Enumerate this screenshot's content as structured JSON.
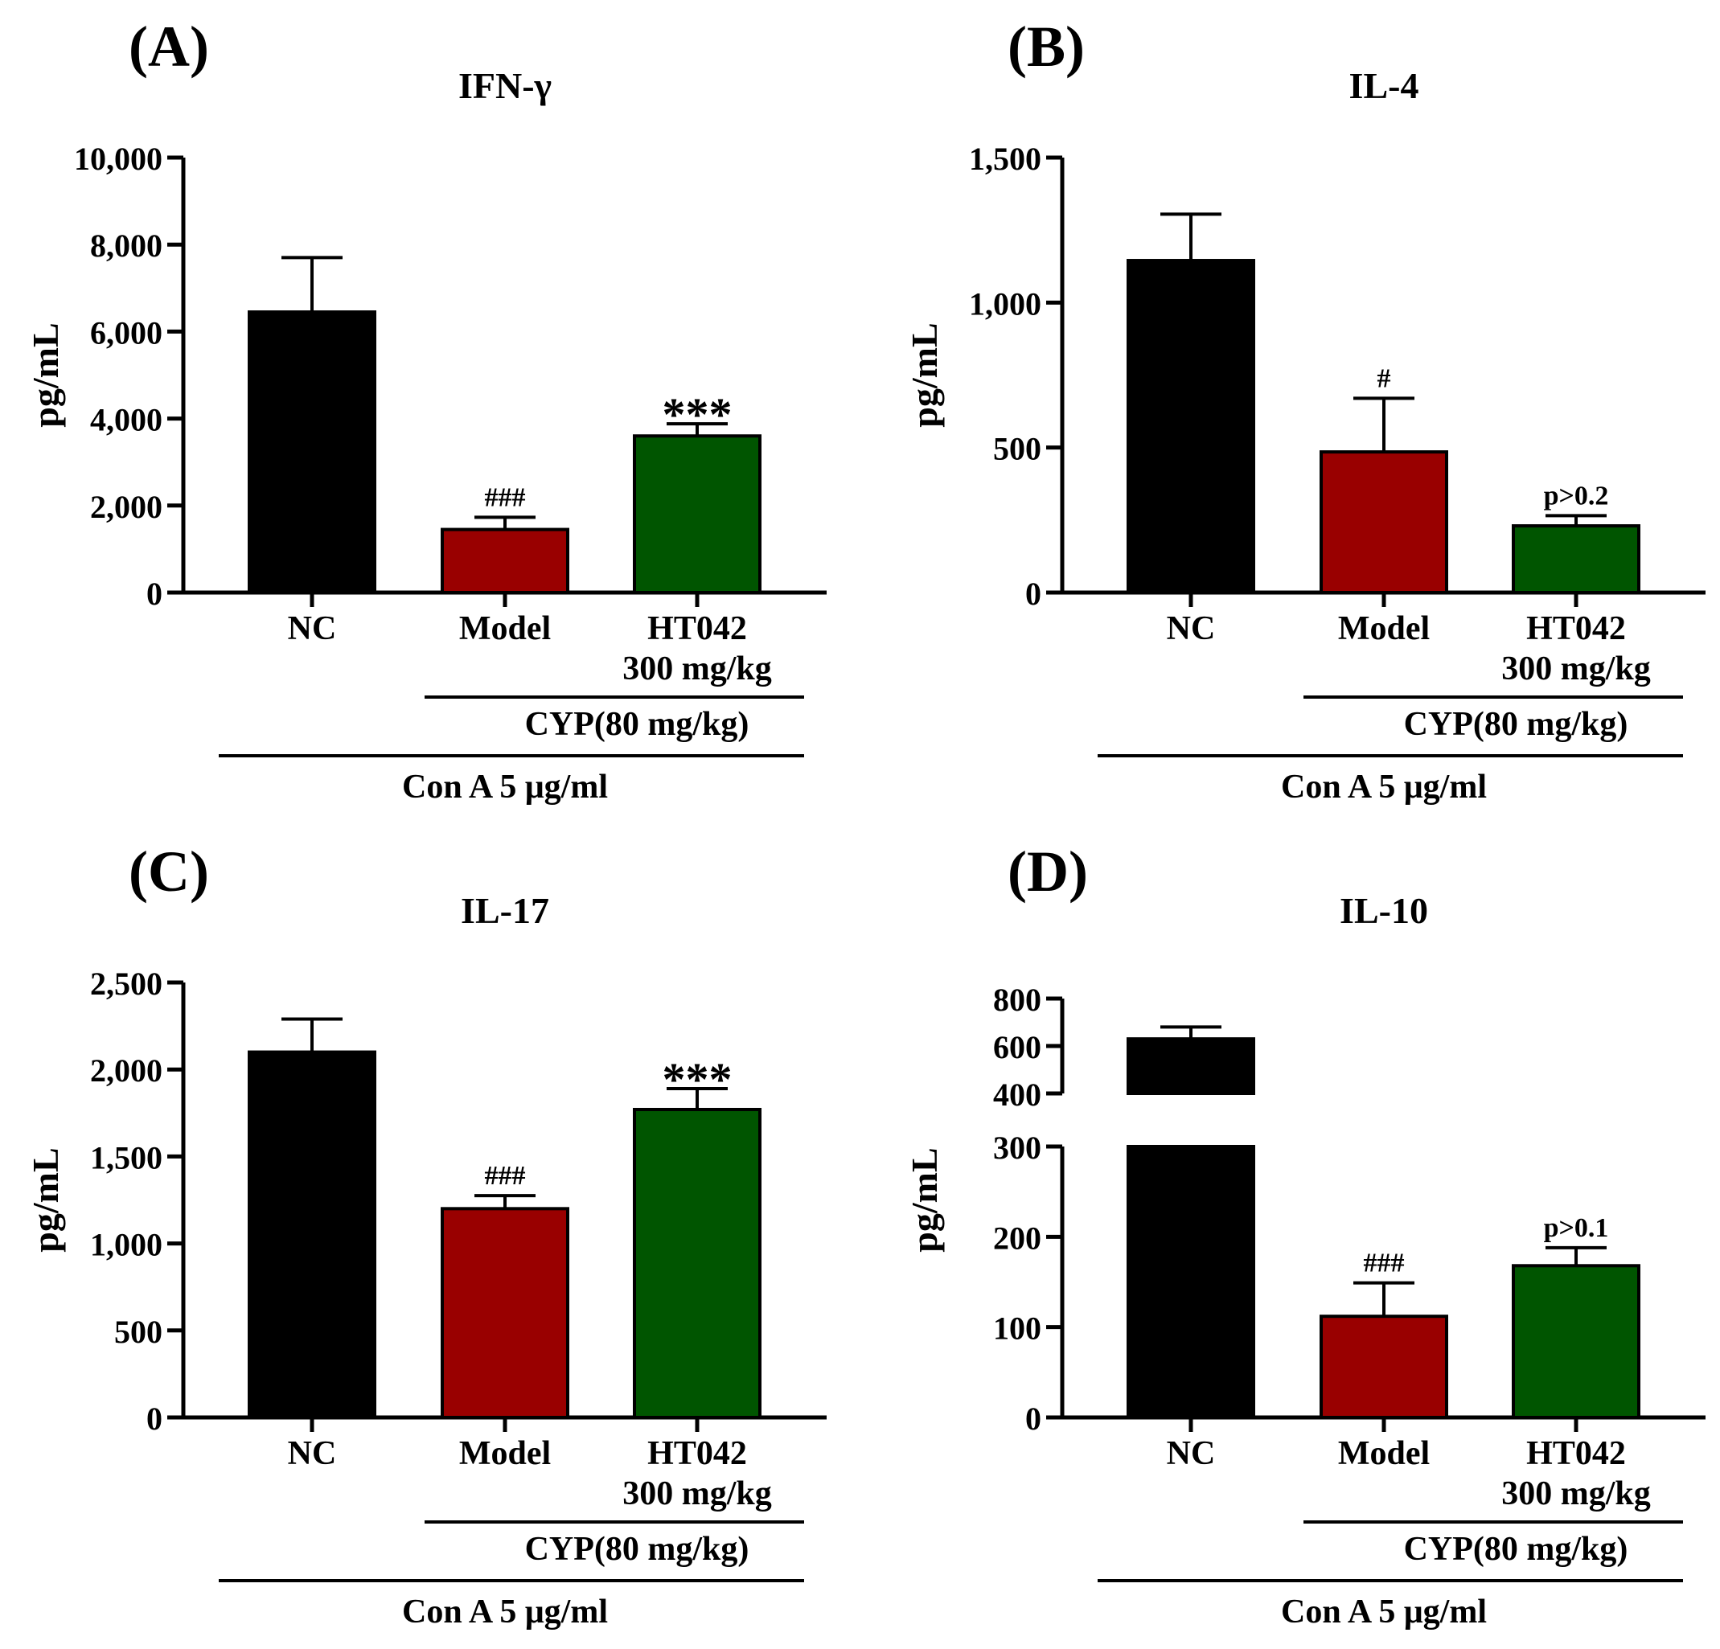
{
  "colors": {
    "nc": "#000000",
    "model": "#990000",
    "ht042": "#005500",
    "axis": "#000000"
  },
  "chart_data": [
    {
      "type": "bar",
      "panel_label": "(A)",
      "title": "IFN-γ",
      "ylabel": "pg/mL",
      "ylim": [
        0,
        10000
      ],
      "yticks": [
        "0",
        "2,000",
        "4,000",
        "6,000",
        "8,000",
        "10,000"
      ],
      "categories": [
        {
          "line1": "NC",
          "line2": ""
        },
        {
          "line1": "Model",
          "line2": ""
        },
        {
          "line1": "HT042",
          "line2": "300 mg/kg"
        }
      ],
      "values": [
        6450,
        1450,
        3600
      ],
      "errors": [
        1250,
        280,
        280
      ],
      "annotations": [
        "",
        "###",
        "***"
      ],
      "group_label_cyp": "CYP(80 mg/kg)",
      "group_label_cona": "Con A 5 μg/ml"
    },
    {
      "type": "bar",
      "panel_label": "(B)",
      "title": "IL-4",
      "ylabel": "pg/mL",
      "ylim": [
        0,
        1500
      ],
      "yticks": [
        "0",
        "500",
        "1,000",
        "1,500"
      ],
      "categories": [
        {
          "line1": "NC",
          "line2": ""
        },
        {
          "line1": "Model",
          "line2": ""
        },
        {
          "line1": "HT042",
          "line2": "300 mg/kg"
        }
      ],
      "values": [
        1145,
        485,
        230
      ],
      "errors": [
        160,
        185,
        35
      ],
      "annotations": [
        "",
        "#",
        "p>0.2"
      ],
      "group_label_cyp": "CYP(80 mg/kg)",
      "group_label_cona": "Con A 5 μg/ml"
    },
    {
      "type": "bar",
      "panel_label": "(C)",
      "title": "IL-17",
      "ylabel": "pg/mL",
      "ylim": [
        0,
        2500
      ],
      "yticks": [
        "0",
        "500",
        "1,000",
        "1,500",
        "2,000",
        "2,500"
      ],
      "categories": [
        {
          "line1": "NC",
          "line2": ""
        },
        {
          "line1": "Model",
          "line2": ""
        },
        {
          "line1": "HT042",
          "line2": "300 mg/kg"
        }
      ],
      "values": [
        2100,
        1200,
        1770
      ],
      "errors": [
        190,
        75,
        120
      ],
      "annotations": [
        "",
        "###",
        "***"
      ],
      "group_label_cyp": "CYP(80 mg/kg)",
      "group_label_cona": "Con A 5 μg/ml"
    },
    {
      "type": "bar",
      "panel_label": "(D)",
      "title": "IL-10",
      "ylabel": "pg/mL",
      "broken_axis": true,
      "ylim_lower": [
        0,
        300
      ],
      "ylim_upper": [
        400,
        800
      ],
      "yticks_lower": [
        "0",
        "100",
        "200",
        "300"
      ],
      "yticks_upper": [
        "400",
        "600",
        "800"
      ],
      "categories": [
        {
          "line1": "NC",
          "line2": ""
        },
        {
          "line1": "Model",
          "line2": ""
        },
        {
          "line1": "HT042",
          "line2": "300 mg/kg"
        }
      ],
      "values": [
        630,
        112,
        168
      ],
      "errors": [
        50,
        37,
        20
      ],
      "annotations": [
        "",
        "###",
        "p>0.1"
      ],
      "group_label_cyp": "CYP(80 mg/kg)",
      "group_label_cona": "Con A 5 μg/ml"
    }
  ]
}
